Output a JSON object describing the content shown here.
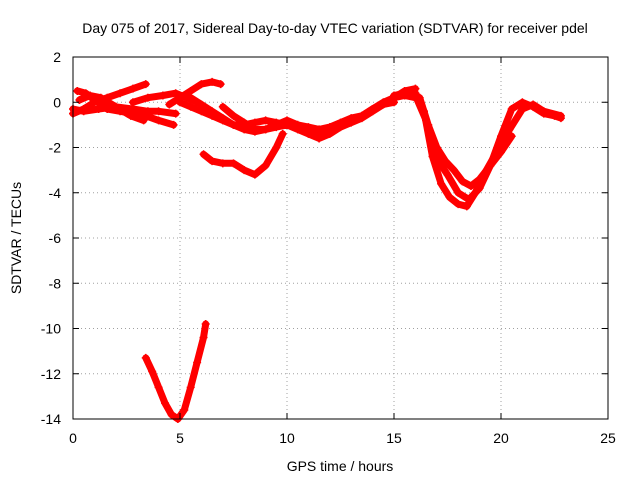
{
  "chart_data": {
    "type": "scatter",
    "title": "Day 075 of 2017, Sidereal Day-to-day VTEC variation (SDTVAR) for receiver pdel",
    "xlabel": "GPS time / hours",
    "ylabel": "SDTVAR / TECUs",
    "xlim": [
      0,
      25
    ],
    "ylim": [
      -14,
      2
    ],
    "xticks": [
      0,
      5,
      10,
      15,
      20,
      25
    ],
    "yticks": [
      2,
      0,
      -2,
      -4,
      -6,
      -8,
      -10,
      -12,
      -14
    ],
    "xtick_labels": [
      "0",
      "5",
      "10",
      "15",
      "20",
      "25"
    ],
    "ytick_labels": [
      "2",
      "0",
      "-2",
      "-4",
      "-6",
      "-8",
      "-10",
      "-12",
      "-14"
    ],
    "grid": true,
    "legend": "none",
    "marker": "+",
    "color": "#ff0000",
    "series": [
      {
        "name": "arc-1",
        "x": [
          0.0,
          0.5,
          1.2,
          2.0,
          2.8,
          3.5,
          4.0,
          4.8
        ],
        "y": [
          -0.3,
          -0.4,
          -0.3,
          -0.2,
          -0.3,
          -0.4,
          -0.4,
          -0.5
        ]
      },
      {
        "name": "arc-2",
        "x": [
          0.2,
          0.6,
          1.0,
          1.6,
          2.2,
          2.8,
          3.4,
          4.0,
          4.7
        ],
        "y": [
          0.5,
          0.4,
          0.1,
          -0.3,
          -0.4,
          -0.5,
          -0.6,
          -0.8,
          -1.0
        ]
      },
      {
        "name": "arc-3",
        "x": [
          0.0,
          0.5,
          1.0,
          1.6,
          2.2,
          2.8,
          3.4
        ],
        "y": [
          -0.5,
          -0.3,
          0.0,
          0.2,
          0.4,
          0.6,
          0.8
        ]
      },
      {
        "name": "arc-4",
        "x": [
          0.3,
          0.8,
          1.3,
          2.0,
          2.7,
          3.3
        ],
        "y": [
          0.1,
          0.3,
          0.2,
          -0.2,
          -0.6,
          -0.8
        ]
      },
      {
        "name": "arc-5",
        "x": [
          2.8,
          3.5,
          4.2,
          4.8,
          5.3,
          5.8
        ],
        "y": [
          0.0,
          0.2,
          0.3,
          0.4,
          0.2,
          0.0
        ]
      },
      {
        "name": "arc-6",
        "x": [
          4.5,
          5.0,
          5.5,
          6.0,
          6.5,
          6.9
        ],
        "y": [
          -0.1,
          0.2,
          0.5,
          0.8,
          0.9,
          0.8
        ]
      },
      {
        "name": "arc-7",
        "x": [
          5.0,
          5.5,
          6.0,
          6.5,
          7.0,
          7.5,
          8.0,
          8.5,
          9.0,
          9.5,
          10.0,
          10.5,
          11.0,
          11.5,
          12.0,
          12.5,
          13.0,
          13.5,
          14.0,
          14.5,
          15.0,
          15.5,
          16.0
        ],
        "y": [
          0.0,
          -0.2,
          -0.4,
          -0.6,
          -0.8,
          -1.0,
          -1.0,
          -0.9,
          -0.8,
          -0.9,
          -1.0,
          -1.0,
          -1.1,
          -1.2,
          -1.1,
          -0.9,
          -0.7,
          -0.6,
          -0.3,
          0.0,
          0.2,
          0.3,
          0.2
        ]
      },
      {
        "name": "arc-8",
        "x": [
          5.5,
          6.0,
          6.5,
          7.0,
          7.5,
          8.0,
          8.5,
          9.0,
          9.5,
          10.0,
          10.5,
          11.0,
          11.5,
          12.0,
          12.5,
          13.0,
          13.5,
          14.0,
          14.5,
          15.0,
          15.5,
          16.0
        ],
        "y": [
          0.2,
          -0.1,
          -0.4,
          -0.7,
          -1.0,
          -1.2,
          -1.3,
          -1.2,
          -1.1,
          -1.0,
          -1.2,
          -1.4,
          -1.6,
          -1.4,
          -1.1,
          -0.9,
          -0.7,
          -0.4,
          -0.1,
          0.2,
          0.5,
          0.6
        ]
      },
      {
        "name": "arc-9",
        "x": [
          7.0,
          7.5,
          8.0,
          8.5,
          9.0,
          9.5,
          10.0,
          10.5,
          11.0,
          11.5,
          12.0,
          12.5,
          13.0,
          13.5,
          14.0,
          14.5,
          15.0
        ],
        "y": [
          -0.2,
          -0.6,
          -0.9,
          -1.2,
          -1.2,
          -1.0,
          -0.8,
          -1.0,
          -1.2,
          -1.4,
          -1.3,
          -1.0,
          -0.8,
          -0.6,
          -0.3,
          -0.1,
          0.0
        ]
      },
      {
        "name": "arc-10",
        "x": [
          6.1,
          6.5,
          7.0,
          7.5,
          8.0,
          8.5,
          9.0,
          9.5,
          9.8
        ],
        "y": [
          -2.3,
          -2.6,
          -2.7,
          -2.7,
          -3.0,
          -3.2,
          -2.8,
          -2.0,
          -1.4
        ]
      },
      {
        "name": "arc-11",
        "x": [
          15.0,
          15.5,
          16.0,
          16.5,
          17.0,
          17.5,
          18.0,
          18.5,
          19.0,
          19.5,
          20.0,
          20.5,
          21.0,
          21.5,
          22.0,
          22.5,
          22.8
        ],
        "y": [
          0.3,
          0.4,
          0.3,
          -0.8,
          -2.5,
          -3.2,
          -4.0,
          -4.3,
          -3.8,
          -2.8,
          -1.5,
          -0.3,
          0.0,
          -0.2,
          -0.5,
          -0.6,
          -0.7
        ]
      },
      {
        "name": "arc-12",
        "x": [
          15.8,
          16.2,
          16.6,
          17.0,
          17.4,
          17.8,
          18.2,
          18.6,
          19.0,
          19.5,
          20.0,
          20.5
        ],
        "y": [
          0.4,
          0.2,
          -1.0,
          -2.0,
          -2.6,
          -3.0,
          -3.5,
          -3.7,
          -3.4,
          -2.8,
          -2.2,
          -1.5
        ]
      },
      {
        "name": "arc-13",
        "x": [
          16.0,
          16.4,
          16.8,
          17.2,
          17.6,
          18.0,
          18.4,
          18.8,
          19.2,
          19.8,
          20.4,
          21.0,
          21.5,
          22.0,
          22.8
        ],
        "y": [
          0.4,
          -0.4,
          -2.4,
          -3.6,
          -4.2,
          -4.5,
          -4.6,
          -4.0,
          -3.2,
          -2.2,
          -1.2,
          -0.3,
          -0.1,
          -0.4,
          -0.6
        ]
      },
      {
        "name": "arc-14",
        "x": [
          3.4,
          3.7,
          4.0,
          4.3,
          4.6,
          4.9,
          5.2,
          5.5,
          5.8,
          6.1,
          6.2
        ],
        "y": [
          -11.3,
          -11.9,
          -12.6,
          -13.3,
          -13.8,
          -14.0,
          -13.6,
          -12.6,
          -11.5,
          -10.4,
          -9.8
        ]
      }
    ]
  }
}
